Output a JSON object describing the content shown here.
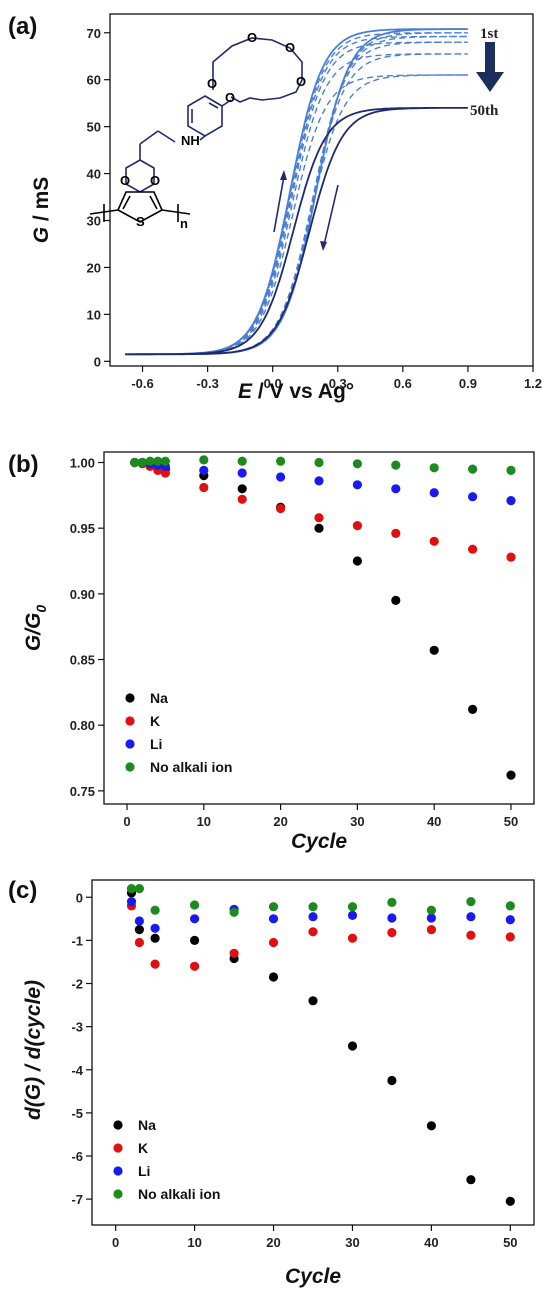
{
  "chart_data": [
    {
      "panel": "(a)",
      "type": "line",
      "xlabel_em": "E",
      "xlabel_rest": " / V vs Ag°",
      "ylabel_em": "G",
      "ylabel_rest": " / mS",
      "xlim": [
        -0.75,
        1.2
      ],
      "ylim": [
        -1,
        74
      ],
      "xticks": [
        "-0.6",
        "-0.3",
        "0.0",
        "0.3",
        "0.6",
        "0.9",
        "1.2"
      ],
      "yticks": [
        "0",
        "10",
        "20",
        "30",
        "40",
        "50",
        "60",
        "70"
      ],
      "annotation_first": "1st",
      "annotation_last": "50th",
      "molecule_labels": [
        "NH",
        "O",
        "O",
        "O",
        "O",
        "O",
        "O",
        "O",
        "S",
        "n"
      ],
      "colors": {
        "dark": "#1f2a6e",
        "light": "#4a7fd6",
        "arrow": "#1a2f5c"
      },
      "series": [
        {
          "cycle": 1,
          "style": "solid",
          "gmax": 70.8,
          "hyst": 0.08
        },
        {
          "cycle": 5,
          "style": "dashed",
          "gmax": 70.0,
          "hyst": 0.075
        },
        {
          "cycle": 10,
          "style": "dashed",
          "gmax": 69.2,
          "hyst": 0.07
        },
        {
          "cycle": 15,
          "style": "dashed",
          "gmax": 68.0,
          "hyst": 0.065
        },
        {
          "cycle": 20,
          "style": "dashed",
          "gmax": 65.5,
          "hyst": 0.06
        },
        {
          "cycle": 30,
          "style": "dashed",
          "gmax": 61.0,
          "hyst": 0.055
        },
        {
          "cycle": 50,
          "style": "solid",
          "gmax": 54.0,
          "hyst": 0.05
        }
      ]
    },
    {
      "panel": "(b)",
      "type": "scatter",
      "xlabel": "Cycle",
      "ylabel": "G/G",
      "ylabel_sub": "0",
      "xlim": [
        -3,
        53
      ],
      "ylim": [
        0.74,
        1.008
      ],
      "xticks": [
        "0",
        "10",
        "20",
        "30",
        "40",
        "50"
      ],
      "yticks": [
        "0.75",
        "0.80",
        "0.85",
        "0.90",
        "0.95",
        "1.00"
      ],
      "legend_position": "bottom-left",
      "series": [
        {
          "name": "Na",
          "color": "#000000",
          "x": [
            1,
            2,
            3,
            4,
            5,
            10,
            15,
            20,
            25,
            30,
            35,
            40,
            45,
            50
          ],
          "y": [
            1.0,
            1.0,
            0.999,
            0.997,
            0.995,
            0.99,
            0.98,
            0.966,
            0.95,
            0.925,
            0.895,
            0.857,
            0.812,
            0.762
          ]
        },
        {
          "name": "K",
          "color": "#e01010",
          "x": [
            1,
            2,
            3,
            4,
            5,
            10,
            15,
            20,
            25,
            30,
            35,
            40,
            45,
            50
          ],
          "y": [
            1.0,
            0.999,
            0.997,
            0.994,
            0.992,
            0.981,
            0.972,
            0.965,
            0.958,
            0.952,
            0.946,
            0.94,
            0.934,
            0.928
          ]
        },
        {
          "name": "Li",
          "color": "#1a1aee",
          "x": [
            1,
            2,
            3,
            4,
            5,
            10,
            15,
            20,
            25,
            30,
            35,
            40,
            45,
            50
          ],
          "y": [
            1.0,
            1.0,
            0.999,
            0.998,
            0.997,
            0.994,
            0.992,
            0.989,
            0.986,
            0.983,
            0.98,
            0.977,
            0.974,
            0.971
          ]
        },
        {
          "name": "No alkali ion",
          "color": "#1c8a1c",
          "x": [
            1,
            2,
            3,
            4,
            5,
            10,
            15,
            20,
            25,
            30,
            35,
            40,
            45,
            50
          ],
          "y": [
            1.0,
            1.0,
            1.001,
            1.001,
            1.001,
            1.002,
            1.001,
            1.001,
            1.0,
            0.999,
            0.998,
            0.996,
            0.995,
            0.994
          ]
        }
      ]
    },
    {
      "panel": "(c)",
      "type": "scatter",
      "xlabel": "Cycle",
      "ylabel": "d(G) / d(cycle)",
      "xlim": [
        -3,
        53
      ],
      "ylim": [
        -7.6,
        0.4
      ],
      "xticks": [
        "0",
        "10",
        "20",
        "30",
        "40",
        "50"
      ],
      "yticks": [
        "0",
        "-1",
        "-2",
        "-3",
        "-4",
        "-5",
        "-6",
        "-7"
      ],
      "legend_position": "bottom-left",
      "series": [
        {
          "name": "Na",
          "color": "#000000",
          "x": [
            2,
            3,
            5,
            10,
            15,
            20,
            25,
            30,
            35,
            40,
            45,
            50
          ],
          "y": [
            0.1,
            -0.75,
            -0.95,
            -1.0,
            -1.42,
            -1.85,
            -2.4,
            -3.45,
            -4.25,
            -5.3,
            -6.55,
            -7.05
          ]
        },
        {
          "name": "K",
          "color": "#e01010",
          "x": [
            2,
            3,
            5,
            10,
            15,
            20,
            25,
            30,
            35,
            40,
            45,
            50
          ],
          "y": [
            -0.2,
            -1.05,
            -1.55,
            -1.6,
            -1.3,
            -1.05,
            -0.8,
            -0.95,
            -0.82,
            -0.75,
            -0.88,
            -0.92
          ]
        },
        {
          "name": "Li",
          "color": "#1a1aee",
          "x": [
            2,
            3,
            5,
            10,
            15,
            20,
            25,
            30,
            35,
            40,
            45,
            50
          ],
          "y": [
            -0.1,
            -0.55,
            -0.72,
            -0.5,
            -0.28,
            -0.5,
            -0.45,
            -0.42,
            -0.48,
            -0.48,
            -0.45,
            -0.52
          ]
        },
        {
          "name": "No alkali ion",
          "color": "#1c8a1c",
          "x": [
            2,
            3,
            5,
            10,
            15,
            20,
            25,
            30,
            35,
            40,
            45,
            50
          ],
          "y": [
            0.2,
            0.2,
            -0.3,
            -0.18,
            -0.35,
            -0.22,
            -0.22,
            -0.22,
            -0.12,
            -0.3,
            -0.1,
            -0.2
          ]
        }
      ]
    }
  ]
}
